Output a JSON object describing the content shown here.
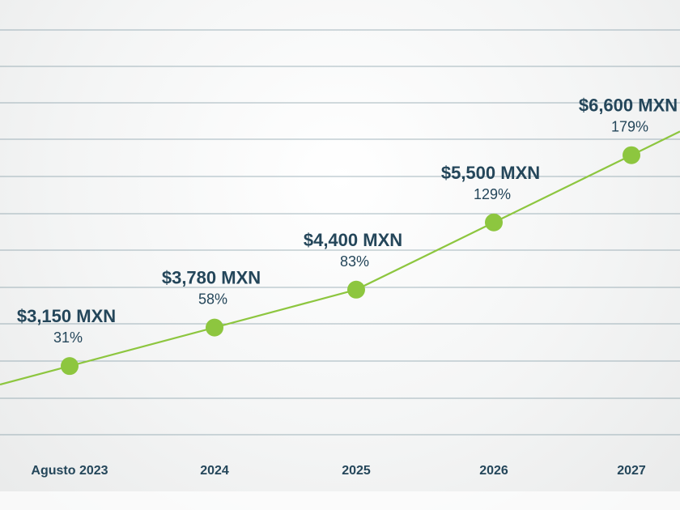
{
  "colors": {
    "line": "#8dc63f",
    "text": "#24465a",
    "grid": "#5f7f8c"
  },
  "chart_data": {
    "type": "line",
    "title": "",
    "xlabel": "",
    "ylabel": "",
    "categories": [
      "Agusto 2023",
      "2024",
      "2025",
      "2026",
      "2027"
    ],
    "series": [
      {
        "values": [
          3150,
          3780,
          4400,
          5500,
          6600
        ],
        "value_labels": [
          "$3,150 MXN",
          "$3,780 MXN",
          "$4,400 MXN",
          "$5,500 MXN",
          "$6,600 MXN"
        ],
        "percent_labels": [
          "31%",
          "58%",
          "83%",
          "129%",
          "179%"
        ]
      }
    ],
    "grid": true,
    "legend": "none"
  }
}
